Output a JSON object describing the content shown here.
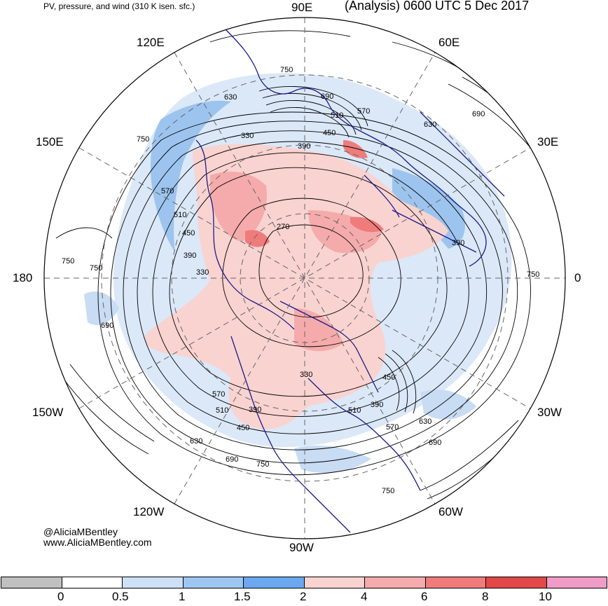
{
  "header": {
    "left_title": "PV, pressure, and wind (310 K isen. sfc.)",
    "right_title": "(Analysis) 0600 UTC 5 Dec 2017"
  },
  "credit": {
    "handle": "@AliciaMBentley",
    "url": "www.AliciaMBentley.com"
  },
  "map": {
    "projection": "north polar stereographic",
    "longitude_labels": [
      {
        "id": "90E",
        "text": "90E"
      },
      {
        "id": "60E",
        "text": "60E"
      },
      {
        "id": "120E",
        "text": "120E"
      },
      {
        "id": "30E",
        "text": "30E"
      },
      {
        "id": "150E",
        "text": "150E"
      },
      {
        "id": "0",
        "text": "0"
      },
      {
        "id": "180",
        "text": "180"
      },
      {
        "id": "30W",
        "text": "30W"
      },
      {
        "id": "150W",
        "text": "150W"
      },
      {
        "id": "60W",
        "text": "60W"
      },
      {
        "id": "120W",
        "text": "120W"
      },
      {
        "id": "90W",
        "text": "90W"
      }
    ],
    "contour_labels": [
      "750",
      "630",
      "690",
      "510",
      "570",
      "330",
      "450",
      "390",
      "630",
      "690",
      "750",
      "570",
      "510",
      "450",
      "390",
      "270",
      "330",
      "390",
      "750",
      "750",
      "750",
      "690",
      "330",
      "450",
      "390",
      "510",
      "570",
      "630",
      "690",
      "750",
      "570",
      "510",
      "390",
      "450",
      "630",
      "690",
      "750"
    ],
    "colors": {
      "coast": "#1a1a8c",
      "contour": "#000000",
      "pv_low": "#c8dcf4",
      "pv_mid": "#9cc4ee",
      "pv_high": "#f9c8c4",
      "pv_higher": "#f3a0a0"
    }
  },
  "colorbar": {
    "unit_scale": "PV",
    "bins": [
      {
        "color": "#c0c0c0"
      },
      {
        "color": "#ffffff"
      },
      {
        "color": "#cde0f7"
      },
      {
        "color": "#9dc6f3"
      },
      {
        "color": "#6ba8ef"
      },
      {
        "color": "#f9d3d0"
      },
      {
        "color": "#f5abab"
      },
      {
        "color": "#ef7b7b"
      },
      {
        "color": "#e24848"
      },
      {
        "color": "#f09cc6"
      }
    ],
    "tick_labels": [
      "0",
      "0.5",
      "1",
      "1.5",
      "2",
      "4",
      "6",
      "8",
      "10"
    ]
  }
}
